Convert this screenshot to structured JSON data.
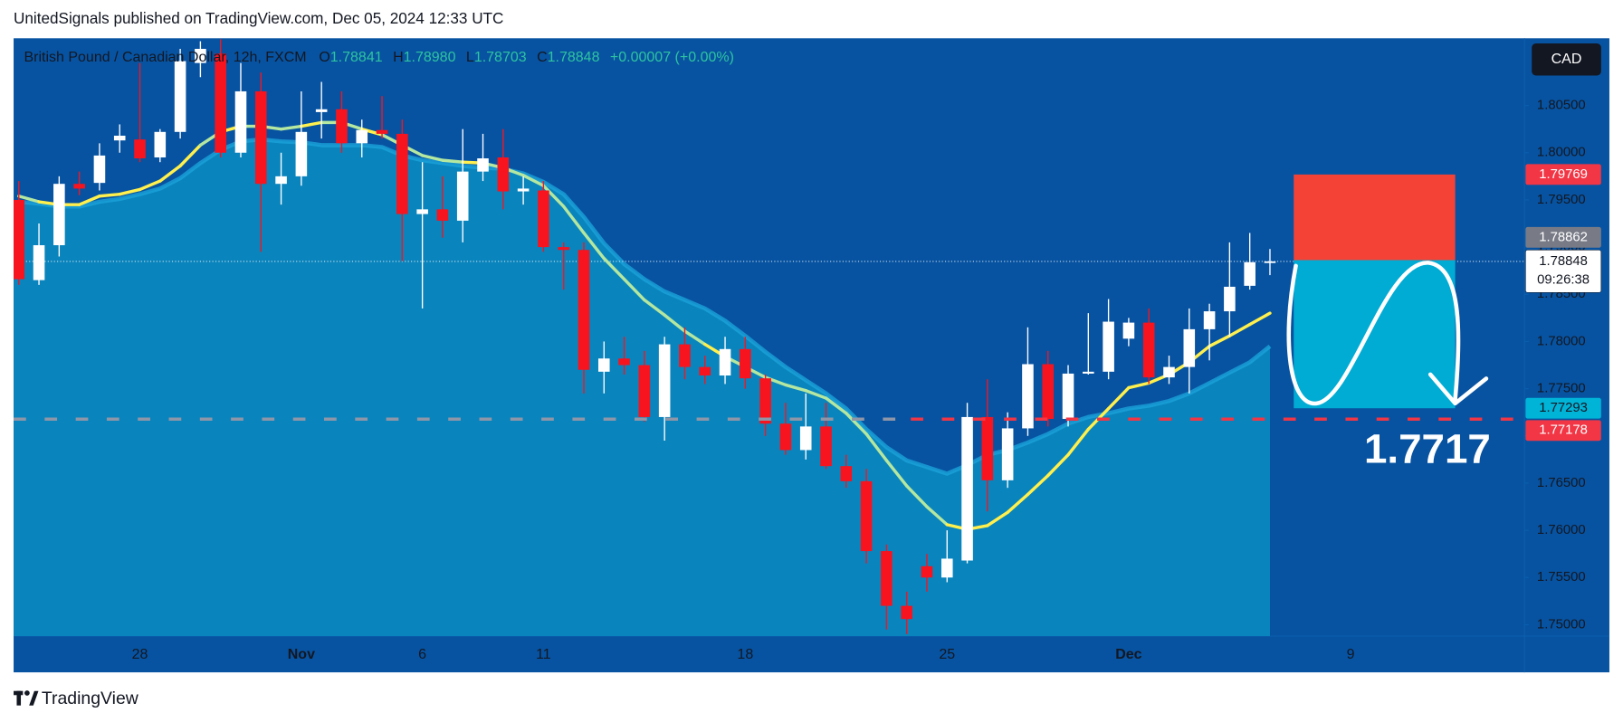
{
  "header": "UnitedSignals published on TradingView.com, Dec 05, 2024 12:33 UTC",
  "brand": "TradingView",
  "chart_data": {
    "type": "candlestick",
    "title": "British Pound / Canadian Dollar, 12h, FXCM",
    "ohlc_legend": [
      {
        "key": "O",
        "value": 1.78841
      },
      {
        "key": "H",
        "value": 1.7898,
        "label": "1.78980"
      },
      {
        "key": "L",
        "value": 1.78703
      },
      {
        "key": "C",
        "value": 1.78848
      }
    ],
    "change": "+0.00007 (+0.00%)",
    "currency": "CAD",
    "categories": [
      null,
      null,
      null,
      null,
      null,
      null,
      "28",
      null,
      null,
      null,
      null,
      null,
      null,
      null,
      "Nov",
      null,
      null,
      null,
      null,
      null,
      "6",
      null,
      null,
      null,
      null,
      null,
      "11",
      null,
      null,
      null,
      null,
      null,
      null,
      null,
      null,
      null,
      "18",
      null,
      null,
      null,
      null,
      null,
      null,
      null,
      null,
      null,
      "25",
      null,
      null,
      null,
      null,
      null,
      null,
      null,
      null,
      "Dec",
      null,
      null,
      null,
      null,
      null,
      null,
      null,
      null,
      null,
      null,
      "9"
    ],
    "open": [
      1.795,
      1.7865,
      1.7902,
      1.7967,
      1.7968,
      1.8013,
      1.8014,
      1.7995,
      1.8022,
      1.8095,
      1.8105,
      1.8,
      1.8065,
      1.7967,
      1.7975,
      1.8043,
      1.8046,
      1.801,
      1.8024,
      1.802,
      1.7935,
      1.794,
      1.7928,
      1.798,
      1.7995,
      1.7959,
      1.796,
      1.79,
      1.7897,
      1.7768,
      1.7782,
      1.7775,
      1.772,
      1.7797,
      1.7773,
      1.7764,
      1.7792,
      1.7761,
      1.7713,
      1.7685,
      1.771,
      1.7668,
      1.7652,
      1.7578,
      1.752,
      1.7562,
      1.755,
      1.7568,
      1.772,
      1.7653,
      1.7708,
      1.7776,
      1.7718,
      1.7766,
      1.7768,
      1.7803,
      1.782,
      1.7762,
      1.7773,
      1.7813,
      1.7832,
      1.7859,
      1.78841,
      null,
      null,
      null,
      null
    ],
    "high": [
      1.797,
      1.7925,
      1.7975,
      1.798,
      1.801,
      1.803,
      1.8095,
      1.8025,
      1.811,
      1.8118,
      1.812,
      1.8095,
      1.8085,
      1.8,
      1.8065,
      1.8075,
      1.8065,
      1.8035,
      1.806,
      1.8035,
      1.799,
      1.7975,
      1.8025,
      1.802,
      1.8025,
      1.7975,
      1.797,
      1.7905,
      1.7905,
      1.78,
      1.7805,
      1.779,
      1.7805,
      1.7815,
      1.7785,
      1.7805,
      1.7805,
      1.7765,
      1.7735,
      1.7745,
      1.7735,
      1.768,
      1.7665,
      1.7585,
      1.7535,
      1.7575,
      1.76,
      1.7735,
      1.776,
      1.7725,
      1.7815,
      1.779,
      1.7775,
      1.783,
      1.7845,
      1.7825,
      1.7835,
      1.7785,
      1.7835,
      1.784,
      1.7905,
      1.7915,
      1.7898,
      null,
      null,
      null,
      null
    ],
    "low": [
      1.786,
      1.786,
      1.789,
      1.7955,
      1.796,
      1.8,
      1.799,
      1.799,
      1.8015,
      1.808,
      1.7995,
      1.7995,
      1.7895,
      1.7945,
      1.7965,
      1.8015,
      1.8,
      1.7995,
      1.8015,
      1.7885,
      1.7835,
      1.791,
      1.7905,
      1.797,
      1.794,
      1.7945,
      1.7895,
      1.7855,
      1.7745,
      1.7745,
      1.7765,
      1.7715,
      1.7695,
      1.776,
      1.7755,
      1.7755,
      1.775,
      1.77,
      1.768,
      1.7675,
      1.7665,
      1.7645,
      1.7565,
      1.7495,
      1.749,
      1.7535,
      1.7545,
      1.7565,
      1.762,
      1.7645,
      1.77,
      1.771,
      1.771,
      1.7765,
      1.776,
      1.7795,
      1.7755,
      1.7755,
      1.7745,
      1.778,
      1.7805,
      1.7855,
      1.78703,
      null,
      null,
      null,
      null
    ],
    "close": [
      1.7866,
      1.7902,
      1.7967,
      1.7962,
      1.7997,
      1.8018,
      1.7994,
      1.8022,
      1.8097,
      1.811,
      1.8,
      1.8065,
      1.7967,
      1.7975,
      1.8022,
      1.8046,
      1.801,
      1.8024,
      1.802,
      1.7935,
      1.794,
      1.7928,
      1.798,
      1.7994,
      1.7959,
      1.7962,
      1.79,
      1.7897,
      1.777,
      1.7782,
      1.7775,
      1.772,
      1.7797,
      1.7773,
      1.7764,
      1.7792,
      1.7761,
      1.7713,
      1.7685,
      1.771,
      1.7668,
      1.7652,
      1.7578,
      1.752,
      1.7506,
      1.755,
      1.757,
      1.772,
      1.7653,
      1.7708,
      1.7776,
      1.7718,
      1.7766,
      1.7768,
      1.7821,
      1.782,
      1.7762,
      1.7773,
      1.7813,
      1.7832,
      1.7858,
      1.7884,
      1.78848,
      null,
      null,
      null,
      null
    ],
    "up_color": "#ffffff",
    "down_color": "#f7141f",
    "series": [
      {
        "values": [
          1.7954,
          1.7948,
          1.7945,
          1.7945,
          1.7954,
          1.7956,
          1.7961,
          1.797,
          1.7986,
          1.8008,
          1.8022,
          1.8028,
          1.8028,
          1.8025,
          1.8028,
          1.8032,
          1.8032,
          1.8025,
          1.8019,
          1.8008,
          1.7997,
          1.7992,
          1.799,
          1.7989,
          1.7984,
          1.7976,
          1.7965,
          1.7943,
          1.7915,
          1.7888,
          1.7866,
          1.7844,
          1.7828,
          1.7811,
          1.7797,
          1.7784,
          1.7773,
          1.7762,
          1.7754,
          1.7748,
          1.774,
          1.7724,
          1.7702,
          1.7674,
          1.7647,
          1.7625,
          1.7606,
          1.7601,
          1.7605,
          1.7619,
          1.7638,
          1.7658,
          1.768,
          1.7707,
          1.7729,
          1.7751,
          1.7756,
          1.7765,
          1.7778,
          1.7795,
          1.7806,
          1.7818,
          1.783,
          null,
          null,
          null,
          null
        ],
        "color": "#fff04d",
        "alt_color": "#b4e7a0"
      },
      {
        "values": [
          1.7948,
          1.7946,
          1.7943,
          1.7943,
          1.7948,
          1.7951,
          1.7956,
          1.7962,
          1.7973,
          1.7989,
          1.8003,
          1.8012,
          1.8014,
          1.8012,
          1.8011,
          1.8008,
          1.8008,
          1.8008,
          1.8006,
          1.7997,
          1.7992,
          1.7989,
          1.7986,
          1.7984,
          1.7983,
          1.7978,
          1.7969,
          1.7956,
          1.7932,
          1.7904,
          1.7882,
          1.7866,
          1.7853,
          1.7844,
          1.7835,
          1.7822,
          1.7806,
          1.7789,
          1.7773,
          1.7759,
          1.7745,
          1.7729,
          1.7707,
          1.7688,
          1.7674,
          1.7667,
          1.766,
          1.7669,
          1.768,
          1.7685,
          1.7693,
          1.7702,
          1.7713,
          1.772,
          1.7724,
          1.7729,
          1.7732,
          1.7737,
          1.7745,
          1.7756,
          1.7767,
          1.7778,
          1.7795,
          null,
          null,
          null,
          null
        ],
        "color": "#1aa3da",
        "fill": "#0a84bc"
      }
    ],
    "ylim": [
      1.74879,
      1.81212
    ],
    "yticks": [
      {
        "value": 1.75,
        "label": "1.75000"
      },
      {
        "value": 1.755,
        "label": "1.75500"
      },
      {
        "value": 1.76,
        "label": "1.76000"
      },
      {
        "value": 1.765,
        "label": "1.76500"
      },
      {
        "value": 1.77,
        "label": "1.77000"
      },
      {
        "value": 1.775,
        "label": "1.77500"
      },
      {
        "value": 1.78,
        "label": "1.78000"
      },
      {
        "value": 1.785,
        "label": "1.78500"
      },
      {
        "value": 1.79,
        "label": "1.79000"
      },
      {
        "value": 1.795,
        "label": "1.79500"
      },
      {
        "value": 1.8,
        "label": "1.80000"
      },
      {
        "value": 1.805,
        "label": "1.80500"
      }
    ],
    "grid": false,
    "price_tags": [
      {
        "value": 1.79769,
        "color": "#f23645",
        "text_color": "#ffffff"
      },
      {
        "value": 1.78862,
        "color": "#787b86",
        "text_color": "#ffffff"
      },
      {
        "value": 1.78848,
        "color": "#ffffff",
        "text_color": "#131722",
        "countdown": "09:26:38",
        "line": "dotted"
      },
      {
        "value": 1.77293,
        "color": "#00b4d8",
        "text_color": "#131722"
      },
      {
        "value": 1.77178,
        "color": "#f23645",
        "text_color": "#ffffff",
        "line": "dashed"
      }
    ],
    "position": {
      "stop": 1.79769,
      "entry": 1.78862,
      "target": 1.77293,
      "stop_color": "#f44336",
      "target_color": "#00acd4"
    },
    "annotation": "1.7717"
  }
}
